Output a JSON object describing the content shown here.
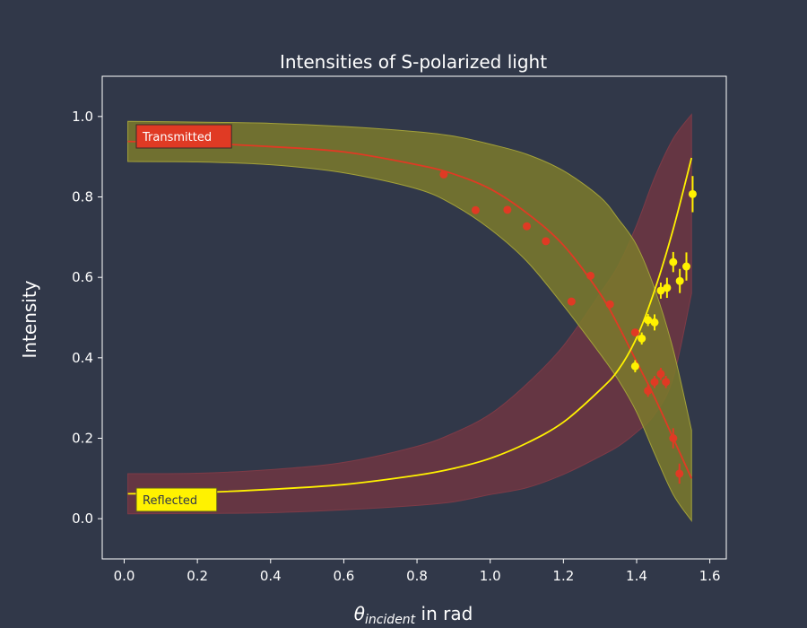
{
  "chart_data": {
    "type": "scatter",
    "title": "Intensities of S-polarized light",
    "xlabel": "θ_incident in rad",
    "xlabel_main": "θ",
    "xlabel_sub": "incident",
    "xlabel_rest": " in rad",
    "ylabel": "Intensity",
    "xlim": [
      -0.06,
      1.645
    ],
    "ylim": [
      -0.1,
      1.1
    ],
    "xticks": [
      "0.0",
      "0.2",
      "0.4",
      "0.6",
      "0.8",
      "1.0",
      "1.2",
      "1.4",
      "1.6"
    ],
    "yticks": [
      "0.0",
      "0.2",
      "0.4",
      "0.6",
      "0.8",
      "1.0"
    ],
    "grid": false,
    "colors": {
      "background": "#313849",
      "transmitted": "#e03a24",
      "reflected": "#fff200",
      "transmitted_band": "#7b7a2c",
      "reflected_band": "#6b3642",
      "axes": "#ffffff"
    },
    "series": [
      {
        "name": "Transmitted",
        "color": "#e03a24",
        "points": [
          {
            "x": 0.873,
            "y": 0.856,
            "err": 0.0
          },
          {
            "x": 0.96,
            "y": 0.767,
            "err": 0.0
          },
          {
            "x": 1.047,
            "y": 0.768,
            "err": 0.0
          },
          {
            "x": 1.1,
            "y": 0.727,
            "err": 0.0
          },
          {
            "x": 1.152,
            "y": 0.69,
            "err": 0.0
          },
          {
            "x": 1.222,
            "y": 0.54,
            "err": 0.0
          },
          {
            "x": 1.274,
            "y": 0.604,
            "err": 0.0
          },
          {
            "x": 1.327,
            "y": 0.533,
            "err": 0.0
          },
          {
            "x": 1.396,
            "y": 0.463,
            "err": 0.0
          },
          {
            "x": 1.431,
            "y": 0.318,
            "err": 0.015
          },
          {
            "x": 1.449,
            "y": 0.34,
            "err": 0.015
          },
          {
            "x": 1.466,
            "y": 0.36,
            "err": 0.015
          },
          {
            "x": 1.48,
            "y": 0.34,
            "err": 0.015
          },
          {
            "x": 1.5,
            "y": 0.2,
            "err": 0.025
          },
          {
            "x": 1.517,
            "y": 0.112,
            "err": 0.025
          }
        ]
      },
      {
        "name": "Reflected",
        "color": "#fff200",
        "points": [
          {
            "x": 1.396,
            "y": 0.379,
            "err": 0.015
          },
          {
            "x": 1.414,
            "y": 0.448,
            "err": 0.015
          },
          {
            "x": 1.431,
            "y": 0.494,
            "err": 0.015
          },
          {
            "x": 1.449,
            "y": 0.488,
            "err": 0.02
          },
          {
            "x": 1.466,
            "y": 0.567,
            "err": 0.02
          },
          {
            "x": 1.483,
            "y": 0.574,
            "err": 0.025
          },
          {
            "x": 1.5,
            "y": 0.638,
            "err": 0.025
          },
          {
            "x": 1.518,
            "y": 0.591,
            "err": 0.03
          },
          {
            "x": 1.536,
            "y": 0.627,
            "err": 0.035
          },
          {
            "x": 1.553,
            "y": 0.807,
            "err": 0.045
          }
        ]
      }
    ],
    "fit_curves": [
      {
        "series": "Transmitted",
        "color": "#e03a24",
        "x": [
          0.01,
          0.2,
          0.4,
          0.6,
          0.8,
          0.9,
          1.0,
          1.1,
          1.2,
          1.3,
          1.35,
          1.4,
          1.45,
          1.5,
          1.55
        ],
        "y": [
          0.938,
          0.934,
          0.925,
          0.912,
          0.88,
          0.857,
          0.82,
          0.76,
          0.68,
          0.56,
          0.48,
          0.39,
          0.3,
          0.2,
          0.1
        ],
        "band_upper": [
          0.988,
          0.986,
          0.983,
          0.975,
          0.962,
          0.951,
          0.931,
          0.906,
          0.865,
          0.8,
          0.745,
          0.68,
          0.57,
          0.42,
          0.22
        ],
        "band_lower": [
          0.888,
          0.887,
          0.88,
          0.86,
          0.82,
          0.78,
          0.72,
          0.64,
          0.53,
          0.41,
          0.345,
          0.265,
          0.16,
          0.06,
          -0.005
        ]
      },
      {
        "series": "Reflected",
        "color": "#fff200",
        "x": [
          0.01,
          0.2,
          0.4,
          0.6,
          0.8,
          0.9,
          1.0,
          1.1,
          1.2,
          1.3,
          1.35,
          1.4,
          1.45,
          1.5,
          1.55
        ],
        "y": [
          0.062,
          0.065,
          0.073,
          0.085,
          0.108,
          0.125,
          0.15,
          0.188,
          0.24,
          0.32,
          0.37,
          0.45,
          0.57,
          0.72,
          0.897
        ],
        "band_upper": [
          0.112,
          0.113,
          0.122,
          0.14,
          0.18,
          0.213,
          0.26,
          0.335,
          0.43,
          0.56,
          0.63,
          0.73,
          0.85,
          0.945,
          1.005
        ],
        "band_lower": [
          0.012,
          0.013,
          0.015,
          0.022,
          0.033,
          0.042,
          0.06,
          0.077,
          0.11,
          0.155,
          0.18,
          0.215,
          0.26,
          0.35,
          0.56
        ]
      }
    ],
    "legend": [
      {
        "label": "Transmitted",
        "bg": "#e03a24",
        "text_color": "#ffffff",
        "placement": "upper-left"
      },
      {
        "label": "Reflected",
        "bg": "#fff200",
        "text_color": "#313849",
        "placement": "lower-left"
      }
    ]
  }
}
